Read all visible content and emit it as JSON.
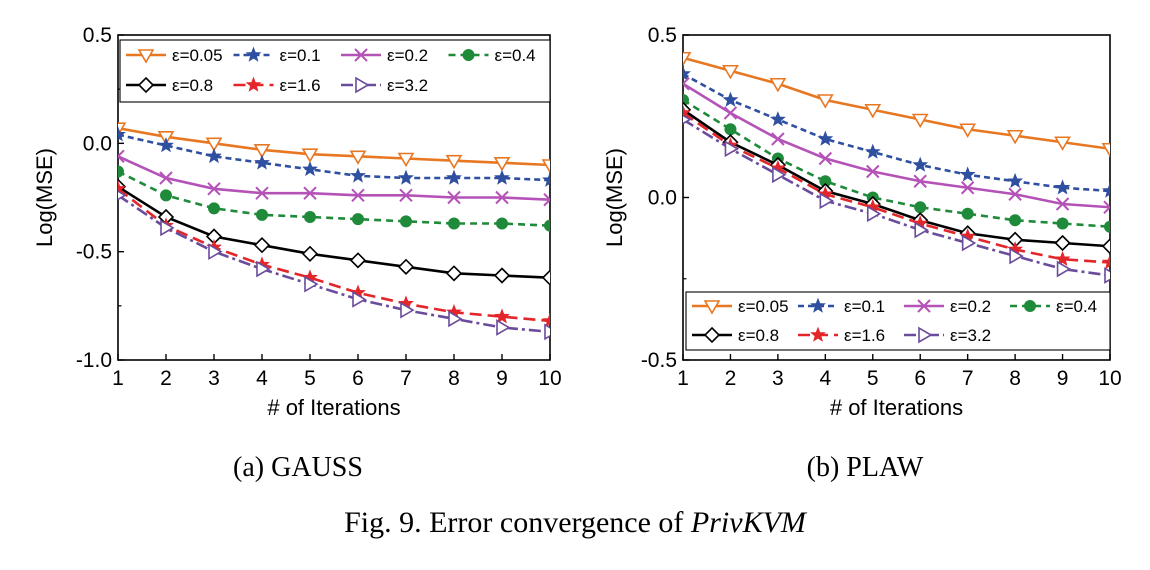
{
  "figure_caption": {
    "prefix": "Fig. 9.  Error convergence of ",
    "emph": "PrivKVM"
  },
  "styles": {
    "ε=0.05": {
      "color": "#E87722",
      "dash": "",
      "marker": "triangle-down-open"
    },
    "ε=0.1": {
      "color": "#2F4FA0",
      "dash": "6,4",
      "marker": "star"
    },
    "ε=0.2": {
      "color": "#B452B8",
      "dash": "",
      "marker": "x"
    },
    "ε=0.4": {
      "color": "#1E8A3A",
      "dash": "7,5",
      "marker": "circle"
    },
    "ε=0.8": {
      "color": "#000000",
      "dash": "",
      "marker": "diamond-open"
    },
    "ε=1.6": {
      "color": "#E3262A",
      "dash": "12,6",
      "marker": "star"
    },
    "ε=3.2": {
      "color": "#6A4C9C",
      "dash": "12,4,3,4",
      "marker": "triangle-right-open"
    }
  },
  "chart_data": [
    {
      "type": "line",
      "caption": "(a) GAUSS",
      "xlabel": "# of Iterations",
      "ylabel": "Log(MSE)",
      "xlim": [
        1,
        10
      ],
      "ylim": [
        -1.0,
        0.5
      ],
      "xticks": [
        "1",
        "2",
        "3",
        "4",
        "5",
        "6",
        "7",
        "8",
        "9",
        "10"
      ],
      "yticks": [
        "0.5",
        "0.0",
        "-0.5",
        "-1.0"
      ],
      "legend_position": "top",
      "x": [
        1,
        2,
        3,
        4,
        5,
        6,
        7,
        8,
        9,
        10
      ],
      "series": [
        {
          "name": "ε=0.05",
          "values": [
            0.07,
            0.03,
            0.0,
            -0.03,
            -0.05,
            -0.06,
            -0.07,
            -0.08,
            -0.09,
            -0.1
          ]
        },
        {
          "name": "ε=0.1",
          "values": [
            0.04,
            -0.01,
            -0.06,
            -0.09,
            -0.12,
            -0.15,
            -0.16,
            -0.16,
            -0.16,
            -0.17
          ]
        },
        {
          "name": "ε=0.2",
          "values": [
            -0.06,
            -0.16,
            -0.21,
            -0.23,
            -0.23,
            -0.24,
            -0.24,
            -0.25,
            -0.25,
            -0.26
          ]
        },
        {
          "name": "ε=0.4",
          "values": [
            -0.13,
            -0.24,
            -0.3,
            -0.33,
            -0.34,
            -0.35,
            -0.36,
            -0.37,
            -0.37,
            -0.38
          ]
        },
        {
          "name": "ε=0.8",
          "values": [
            -0.2,
            -0.34,
            -0.43,
            -0.47,
            -0.51,
            -0.54,
            -0.57,
            -0.6,
            -0.61,
            -0.62
          ]
        },
        {
          "name": "ε=1.6",
          "values": [
            -0.21,
            -0.38,
            -0.48,
            -0.56,
            -0.62,
            -0.69,
            -0.74,
            -0.78,
            -0.8,
            -0.82
          ]
        },
        {
          "name": "ε=3.2",
          "values": [
            -0.24,
            -0.39,
            -0.5,
            -0.58,
            -0.65,
            -0.72,
            -0.77,
            -0.81,
            -0.85,
            -0.87
          ]
        }
      ]
    },
    {
      "type": "line",
      "caption": "(b) PLAW",
      "xlabel": "# of Iterations",
      "ylabel": "Log(MSE)",
      "xlim": [
        1,
        10
      ],
      "ylim": [
        -0.5,
        0.5
      ],
      "xticks": [
        "1",
        "2",
        "3",
        "4",
        "5",
        "6",
        "7",
        "8",
        "9",
        "10"
      ],
      "yticks": [
        "0.5",
        "0.0",
        "-0.5"
      ],
      "legend_position": "bottom",
      "x": [
        1,
        2,
        3,
        4,
        5,
        6,
        7,
        8,
        9,
        10
      ],
      "series": [
        {
          "name": "ε=0.05",
          "values": [
            0.43,
            0.39,
            0.35,
            0.3,
            0.27,
            0.24,
            0.21,
            0.19,
            0.17,
            0.15
          ]
        },
        {
          "name": "ε=0.1",
          "values": [
            0.38,
            0.3,
            0.24,
            0.18,
            0.14,
            0.1,
            0.07,
            0.05,
            0.03,
            0.02
          ]
        },
        {
          "name": "ε=0.2",
          "values": [
            0.35,
            0.26,
            0.18,
            0.12,
            0.08,
            0.05,
            0.03,
            0.01,
            -0.02,
            -0.03
          ]
        },
        {
          "name": "ε=0.4",
          "values": [
            0.3,
            0.21,
            0.12,
            0.05,
            0.0,
            -0.03,
            -0.05,
            -0.07,
            -0.08,
            -0.09
          ]
        },
        {
          "name": "ε=0.8",
          "values": [
            0.27,
            0.17,
            0.1,
            0.02,
            -0.02,
            -0.07,
            -0.11,
            -0.13,
            -0.14,
            -0.15
          ]
        },
        {
          "name": "ε=1.6",
          "values": [
            0.26,
            0.16,
            0.09,
            0.01,
            -0.03,
            -0.08,
            -0.12,
            -0.16,
            -0.19,
            -0.2
          ]
        },
        {
          "name": "ε=3.2",
          "values": [
            0.24,
            0.15,
            0.07,
            -0.01,
            -0.05,
            -0.1,
            -0.14,
            -0.18,
            -0.22,
            -0.24
          ]
        }
      ]
    }
  ]
}
